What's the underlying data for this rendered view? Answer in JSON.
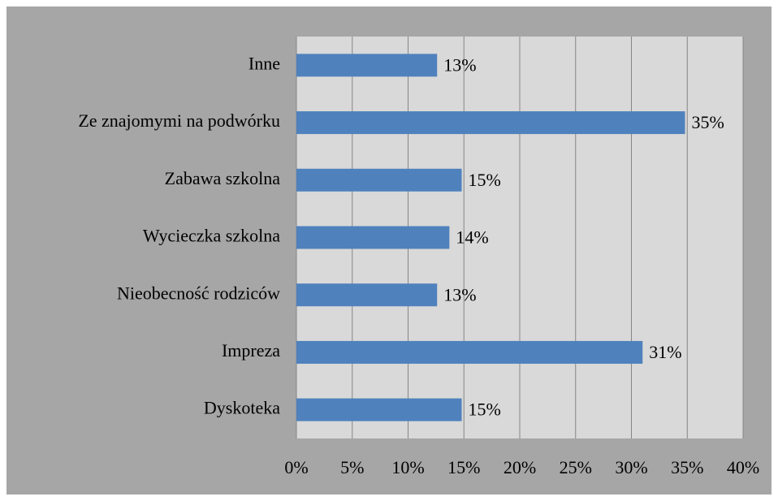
{
  "chart_data": {
    "type": "barh",
    "categories": [
      "Inne",
      "Ze znajomymi na podwórku",
      "Zabawa szkolna",
      "Wycieczka szkolna",
      "Nieobecność rodziców",
      "Impreza",
      "Dyskoteka"
    ],
    "values": [
      12.6,
      34.8,
      14.8,
      13.7,
      12.6,
      31.0,
      14.8
    ],
    "value_labels": [
      "13%",
      "35%",
      "15%",
      "14%",
      "13%",
      "31%",
      "15%"
    ],
    "color": "#4f81bd",
    "xlim": [
      0,
      40
    ],
    "xticks": [
      {
        "value": 0,
        "label": "0%"
      },
      {
        "value": 5,
        "label": "5%"
      },
      {
        "value": 10,
        "label": "10%"
      },
      {
        "value": 15,
        "label": "15%"
      },
      {
        "value": 20,
        "label": "20%"
      },
      {
        "value": 25,
        "label": "25%"
      },
      {
        "value": 30,
        "label": "30%"
      },
      {
        "value": 35,
        "label": "35%"
      },
      {
        "value": 40,
        "label": "40%"
      }
    ],
    "grid": true
  }
}
